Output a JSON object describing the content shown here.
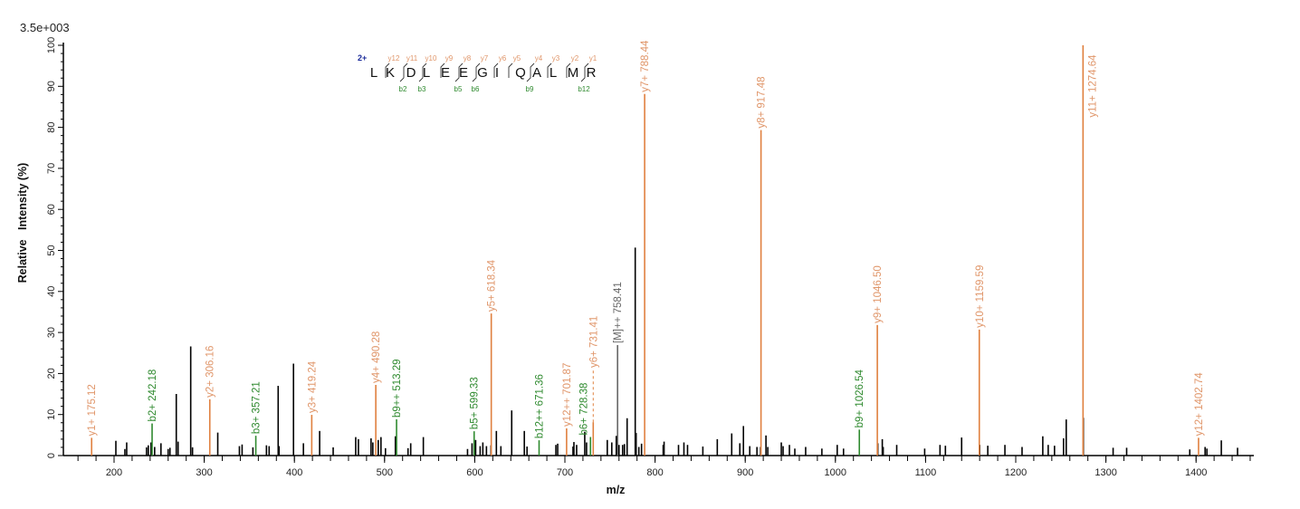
{
  "chart_data": {
    "type": "bar",
    "subtype": "mass-spectrum",
    "scale_label": "3.5e+003",
    "xlabel": "m/z",
    "ylabel": "Relative   Intensity (%)",
    "xlim": [
      144,
      1464
    ],
    "ylim": [
      0,
      100
    ],
    "x_ticks": [
      200,
      300,
      400,
      500,
      600,
      700,
      800,
      900,
      1000,
      1100,
      1200,
      1300,
      1400
    ],
    "y_ticks": [
      0,
      10,
      20,
      30,
      40,
      50,
      60,
      70,
      80,
      90,
      100
    ],
    "grid": false,
    "colors": {
      "y_ion": "#E0803F",
      "y_text": "#E0966A",
      "b_ion": "#2F8A2F",
      "precursor": "#666666",
      "unassigned": "#000000",
      "charge": "#1a2a9a"
    },
    "peptide": {
      "charge": "2+",
      "sequence": [
        "L",
        "K",
        "D",
        "L",
        "E",
        "E",
        "G",
        "I",
        "Q",
        "A",
        "L",
        "M",
        "R"
      ],
      "y_ions": [
        "y12",
        "y11",
        "y10",
        "y9",
        "y8",
        "y7",
        "y6",
        "y5",
        "y4",
        "y3",
        "y2",
        "y1"
      ],
      "b_ions": [
        {
          "label": "b2",
          "after": 2
        },
        {
          "label": "b3",
          "after": 3
        },
        {
          "label": "b5",
          "after": 5
        },
        {
          "label": "b6",
          "after": 6
        },
        {
          "label": "b9",
          "after": 9
        },
        {
          "label": "b12",
          "after": 12
        }
      ]
    },
    "annotated_peaks": [
      {
        "mz": 175.12,
        "intensity": 3.0,
        "ion": "y",
        "label": "y1+ 175.12"
      },
      {
        "mz": 242.18,
        "intensity": 6.5,
        "ion": "b",
        "label": "b2+ 242.18"
      },
      {
        "mz": 306.16,
        "intensity": 12.4,
        "ion": "y",
        "label": "y2+ 306.16"
      },
      {
        "mz": 357.21,
        "intensity": 3.5,
        "ion": "b",
        "label": "b3+ 357.21"
      },
      {
        "mz": 419.24,
        "intensity": 8.6,
        "ion": "y",
        "label": "y3+ 419.24"
      },
      {
        "mz": 490.28,
        "intensity": 15.9,
        "ion": "y",
        "label": "y4+ 490.28"
      },
      {
        "mz": 513.29,
        "intensity": 7.5,
        "ion": "b",
        "label": "b9++ 513.29"
      },
      {
        "mz": 599.33,
        "intensity": 4.6,
        "ion": "b",
        "label": "b5+ 599.33"
      },
      {
        "mz": 618.34,
        "intensity": 33.3,
        "ion": "y",
        "label": "y5+ 618.34"
      },
      {
        "mz": 671.36,
        "intensity": 2.4,
        "ion": "b",
        "label": "b12++ 671.36"
      },
      {
        "mz": 701.87,
        "intensity": 5.3,
        "ion": "y",
        "label": "y12++ 701.87"
      },
      {
        "mz": 728.38,
        "intensity": 3.2,
        "ion": "b",
        "label": "b6+ 728.38"
      },
      {
        "mz": 731.41,
        "intensity": 6.8,
        "ion": "y",
        "label": "y6+ 731.41"
      },
      {
        "mz": 758.41,
        "intensity": 25.6,
        "ion": "precursor",
        "label": "[M]++ 758.41"
      },
      {
        "mz": 788.44,
        "intensity": 86.8,
        "ion": "y",
        "label": "y7+ 788.44"
      },
      {
        "mz": 917.48,
        "intensity": 78.0,
        "ion": "y",
        "label": "y8+ 917.48"
      },
      {
        "mz": 1026.54,
        "intensity": 5.0,
        "ion": "b",
        "label": "b9+ 1026.54"
      },
      {
        "mz": 1046.5,
        "intensity": 30.5,
        "ion": "y",
        "label": "y9+ 1046.50"
      },
      {
        "mz": 1159.59,
        "intensity": 29.4,
        "ion": "y",
        "label": "y10+ 1159.59"
      },
      {
        "mz": 1274.64,
        "intensity": 100,
        "ion": "y",
        "label": "y11+ 1274.64"
      },
      {
        "mz": 1402.74,
        "intensity": 3.0,
        "ion": "y",
        "label": "y12+ 1402.74"
      }
    ],
    "unassigned_peaks": [
      [
        202,
        3.6
      ],
      [
        212,
        1.6
      ],
      [
        214,
        3.2
      ],
      [
        236,
        2.0
      ],
      [
        238,
        2.5
      ],
      [
        241,
        3.2
      ],
      [
        245,
        2.1
      ],
      [
        252,
        3.0
      ],
      [
        260,
        1.6
      ],
      [
        262,
        1.9
      ],
      [
        269,
        15.0
      ],
      [
        271,
        3.4
      ],
      [
        285,
        26.6
      ],
      [
        287,
        2.0
      ],
      [
        315,
        5.6
      ],
      [
        339,
        2.3
      ],
      [
        342,
        2.7
      ],
      [
        354,
        2.0
      ],
      [
        369,
        2.5
      ],
      [
        372,
        2.3
      ],
      [
        382,
        17.0
      ],
      [
        383,
        2.3
      ],
      [
        399,
        22.4
      ],
      [
        410,
        3.0
      ],
      [
        428,
        6.0
      ],
      [
        443,
        2.0
      ],
      [
        468,
        4.5
      ],
      [
        471,
        4.0
      ],
      [
        485,
        4.2
      ],
      [
        487,
        3.2
      ],
      [
        493,
        3.8
      ],
      [
        496,
        4.5
      ],
      [
        501,
        1.8
      ],
      [
        512,
        4.7
      ],
      [
        526,
        1.8
      ],
      [
        529,
        3.0
      ],
      [
        543,
        4.5
      ],
      [
        592,
        1.6
      ],
      [
        597,
        3.0
      ],
      [
        601,
        3.8
      ],
      [
        606,
        2.3
      ],
      [
        609,
        3.2
      ],
      [
        613,
        2.3
      ],
      [
        618,
        2.5
      ],
      [
        624,
        6.0
      ],
      [
        629,
        2.3
      ],
      [
        641,
        11.0
      ],
      [
        655,
        6.0
      ],
      [
        658,
        2.2
      ],
      [
        690,
        2.6
      ],
      [
        692,
        2.9
      ],
      [
        709,
        2.2
      ],
      [
        710,
        3.3
      ],
      [
        713,
        2.6
      ],
      [
        722,
        5.8
      ],
      [
        724,
        3.2
      ],
      [
        747,
        3.8
      ],
      [
        752,
        3.2
      ],
      [
        757,
        4.8
      ],
      [
        760,
        2.6
      ],
      [
        764,
        2.6
      ],
      [
        766,
        2.8
      ],
      [
        769,
        9.1
      ],
      [
        778,
        50.7
      ],
      [
        779,
        5.5
      ],
      [
        782,
        2.1
      ],
      [
        785,
        2.9
      ],
      [
        809,
        2.6
      ],
      [
        810,
        3.4
      ],
      [
        826,
        2.6
      ],
      [
        832,
        3.2
      ],
      [
        836,
        2.6
      ],
      [
        853,
        2.2
      ],
      [
        869,
        4.0
      ],
      [
        885,
        5.4
      ],
      [
        894,
        3.0
      ],
      [
        898,
        7.2
      ],
      [
        905,
        2.3
      ],
      [
        913,
        2.1
      ],
      [
        917,
        2.1
      ],
      [
        923,
        4.9
      ],
      [
        925,
        2.1
      ],
      [
        940,
        3.2
      ],
      [
        942,
        2.3
      ],
      [
        949,
        2.6
      ],
      [
        955,
        1.7
      ],
      [
        967,
        2.1
      ],
      [
        985,
        1.7
      ],
      [
        1002,
        2.6
      ],
      [
        1009,
        1.7
      ],
      [
        1047,
        3.0
      ],
      [
        1052,
        4.0
      ],
      [
        1053,
        2.1
      ],
      [
        1068,
        2.6
      ],
      [
        1099,
        1.7
      ],
      [
        1116,
        2.6
      ],
      [
        1122,
        2.4
      ],
      [
        1140,
        4.4
      ],
      [
        1160,
        2.6
      ],
      [
        1169,
        2.4
      ],
      [
        1188,
        2.6
      ],
      [
        1207,
        2.1
      ],
      [
        1230,
        4.7
      ],
      [
        1236,
        2.6
      ],
      [
        1243,
        2.4
      ],
      [
        1253,
        4.2
      ],
      [
        1256,
        8.8
      ],
      [
        1275,
        9.2
      ],
      [
        1308,
        1.9
      ],
      [
        1323,
        1.9
      ],
      [
        1393,
        1.5
      ],
      [
        1410,
        2.1
      ],
      [
        1412,
        1.7
      ],
      [
        1428,
        3.7
      ],
      [
        1446,
        1.9
      ]
    ]
  }
}
